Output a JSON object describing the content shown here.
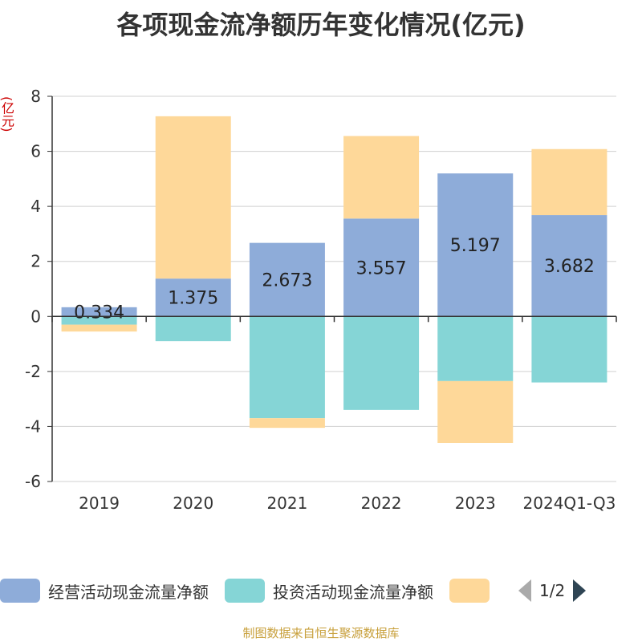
{
  "chart_data": {
    "type": "bar",
    "stacked": true,
    "title": "各项现金流净额历年变化情况(亿元)",
    "unit_label": "(亿元)",
    "categories": [
      "2019",
      "2020",
      "2021",
      "2022",
      "2023",
      "2024Q1-Q3"
    ],
    "ylim": [
      -6,
      8
    ],
    "yticks": [
      -6,
      -4,
      -2,
      0,
      2,
      4,
      6,
      8
    ],
    "grid": true,
    "series": [
      {
        "name": "经营活动现金流量净额",
        "color": "#8eacd9",
        "values": [
          0.334,
          1.375,
          2.673,
          3.557,
          5.197,
          3.682
        ],
        "labels": [
          "0.334",
          "1.375",
          "2.673",
          "3.557",
          "5.197",
          "3.682"
        ]
      },
      {
        "name": "投资活动现金流量净额",
        "color": "#85d5d6",
        "values": [
          -0.3,
          -0.9,
          -3.7,
          -3.4,
          -2.35,
          -2.4
        ]
      },
      {
        "name": "",
        "color": "#fed899",
        "values": [
          -0.25,
          5.9,
          -0.35,
          3.0,
          -2.25,
          2.4
        ]
      }
    ],
    "legend": {
      "position": "bottom",
      "page": "1/2"
    },
    "source": "制图数据来自恒生聚源数据库"
  }
}
